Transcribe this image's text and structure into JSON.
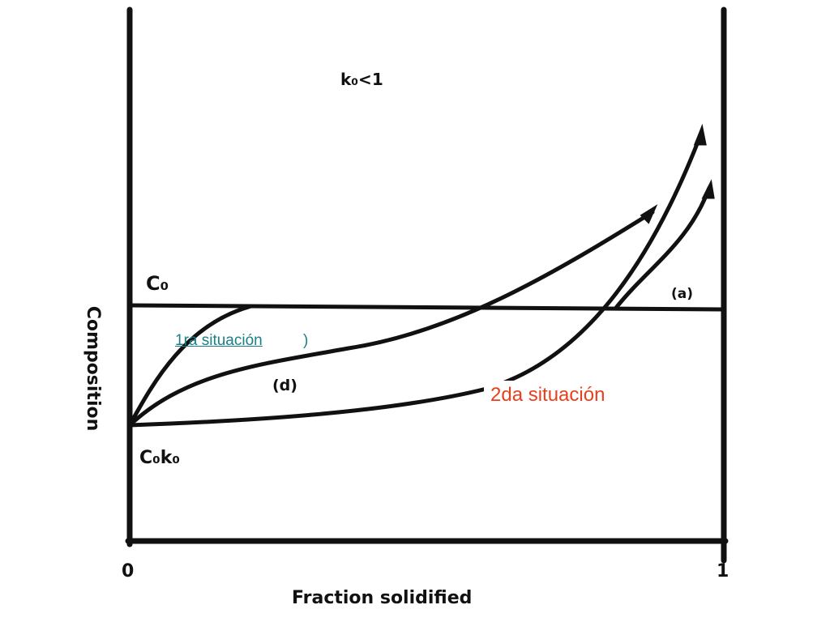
{
  "diagram": {
    "ratio_label": "k₀<1",
    "c0_label": "C₀",
    "curve_a_label": "(a)",
    "curve_d_label": "(d)",
    "c0k0_label": "C₀k₀",
    "x_start_label": "0",
    "x_end_label": "1",
    "y_axis_label": "Composition",
    "x_axis_label": "Fraction solidified"
  },
  "annotations": {
    "first": "1ra situación",
    "first_suffix": ")",
    "second": "2da situación"
  }
}
